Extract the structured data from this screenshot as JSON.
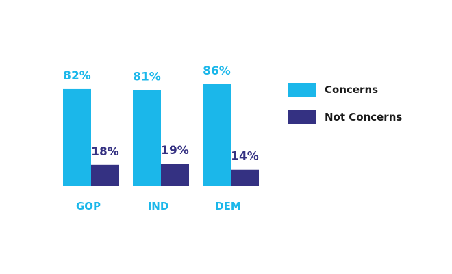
{
  "chart_data": {
    "type": "bar",
    "categories": [
      "GOP",
      "IND",
      "DEM"
    ],
    "series": [
      {
        "name": "Concerns",
        "values": [
          82,
          81,
          86
        ],
        "labels": [
          "82%",
          "81%",
          "86%"
        ],
        "color": "#1bb7ea"
      },
      {
        "name": "Not Concerns",
        "values": [
          18,
          19,
          14
        ],
        "labels": [
          "18%",
          "19%",
          "14%"
        ],
        "color": "#343182"
      }
    ],
    "category_label_color": "#1bb7ea",
    "ylim": [
      0,
      86
    ],
    "grid": false,
    "legend_position": "right",
    "title": "",
    "xlabel": "",
    "ylabel": ""
  }
}
